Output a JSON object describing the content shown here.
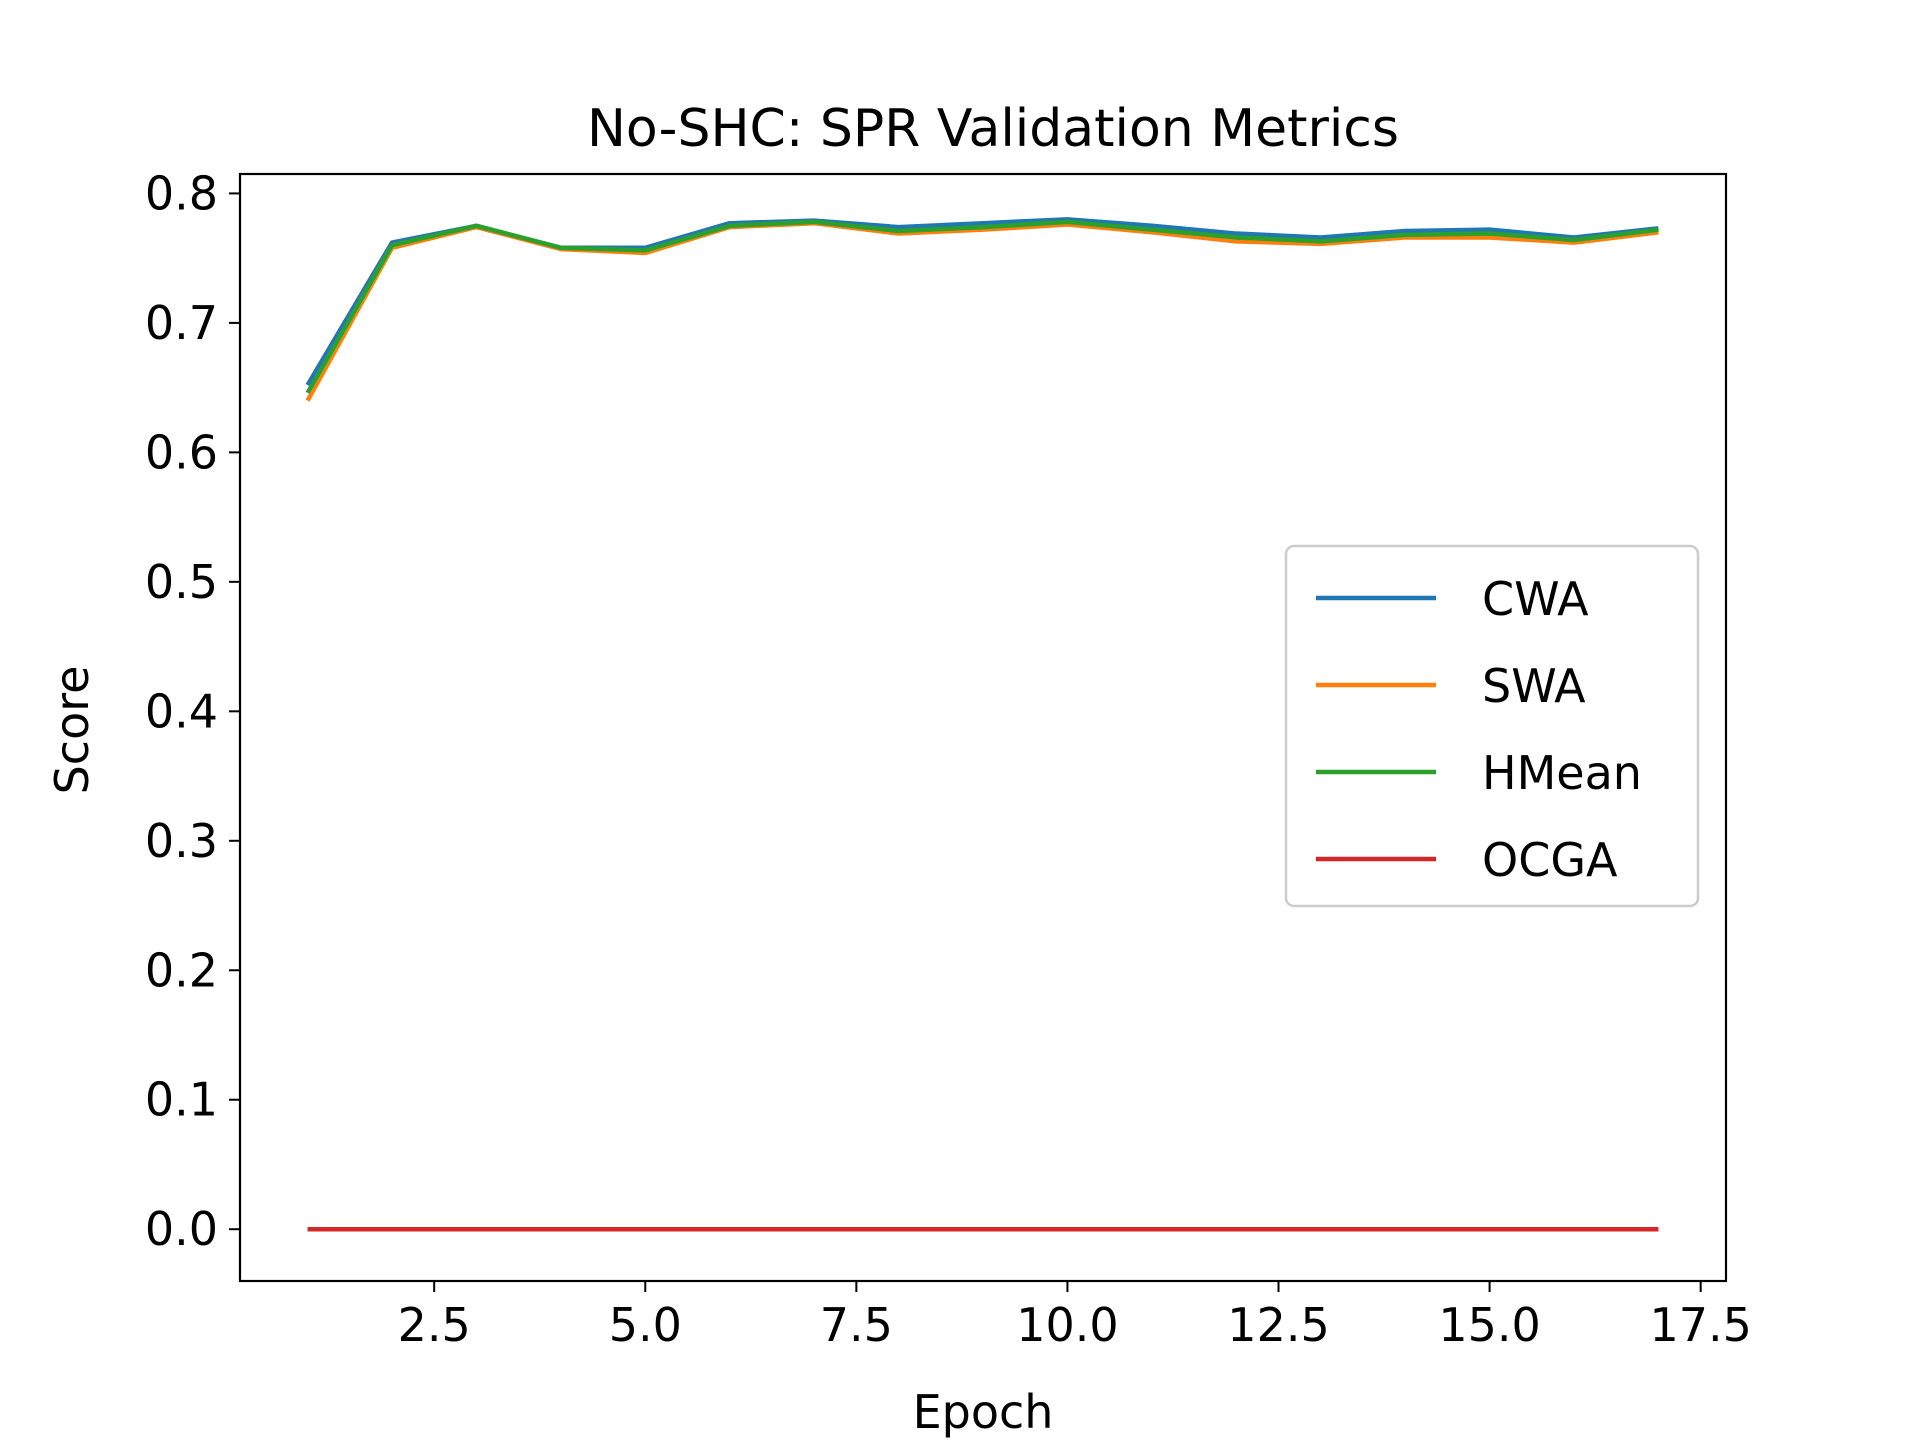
{
  "chart_data": {
    "type": "line",
    "title": "No-SHC: SPR Validation Metrics",
    "xlabel": "Epoch",
    "ylabel": "Score",
    "xlim": [
      0.2,
      17.8
    ],
    "ylim": [
      -0.04,
      0.815
    ],
    "xticks": [
      "2.5",
      "5.0",
      "7.5",
      "10.0",
      "12.5",
      "15.0",
      "17.5"
    ],
    "yticks": [
      "0.0",
      "0.1",
      "0.2",
      "0.3",
      "0.4",
      "0.5",
      "0.6",
      "0.7",
      "0.8"
    ],
    "grid": false,
    "legend_position": "center-right",
    "x": [
      1,
      2,
      3,
      4,
      5,
      6,
      7,
      8,
      9,
      10,
      11,
      12,
      13,
      14,
      15,
      16,
      17
    ],
    "series": [
      {
        "name": "CWA",
        "color": "#1f77b4",
        "values": [
          0.652,
          0.762,
          0.775,
          0.758,
          0.758,
          0.777,
          0.779,
          0.774,
          0.777,
          0.78,
          0.775,
          0.769,
          0.766,
          0.771,
          0.772,
          0.766,
          0.773
        ]
      },
      {
        "name": "SWA",
        "color": "#ff7f0e",
        "values": [
          0.64,
          0.758,
          0.774,
          0.757,
          0.754,
          0.774,
          0.777,
          0.769,
          0.772,
          0.776,
          0.77,
          0.763,
          0.761,
          0.766,
          0.766,
          0.762,
          0.77
        ]
      },
      {
        "name": "HMean",
        "color": "#2ca02c",
        "values": [
          0.646,
          0.76,
          0.775,
          0.758,
          0.756,
          0.775,
          0.778,
          0.771,
          0.774,
          0.778,
          0.772,
          0.766,
          0.763,
          0.768,
          0.769,
          0.764,
          0.772
        ]
      },
      {
        "name": "OCGA",
        "color": "#d62728",
        "values": [
          0,
          0,
          0,
          0,
          0,
          0,
          0,
          0,
          0,
          0,
          0,
          0,
          0,
          0,
          0,
          0,
          0
        ]
      }
    ]
  }
}
